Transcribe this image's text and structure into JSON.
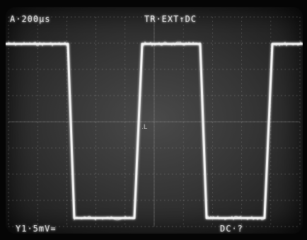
{
  "readouts": {
    "timebase": "A·200μs",
    "trigger": "TR·EXT↑DC",
    "channel": "Y1·5mV=",
    "coupling": "DC·?"
  },
  "colors": {
    "trace": "#f4f4f4",
    "graticule": "#8a8a8a",
    "screen": "#363636"
  }
}
